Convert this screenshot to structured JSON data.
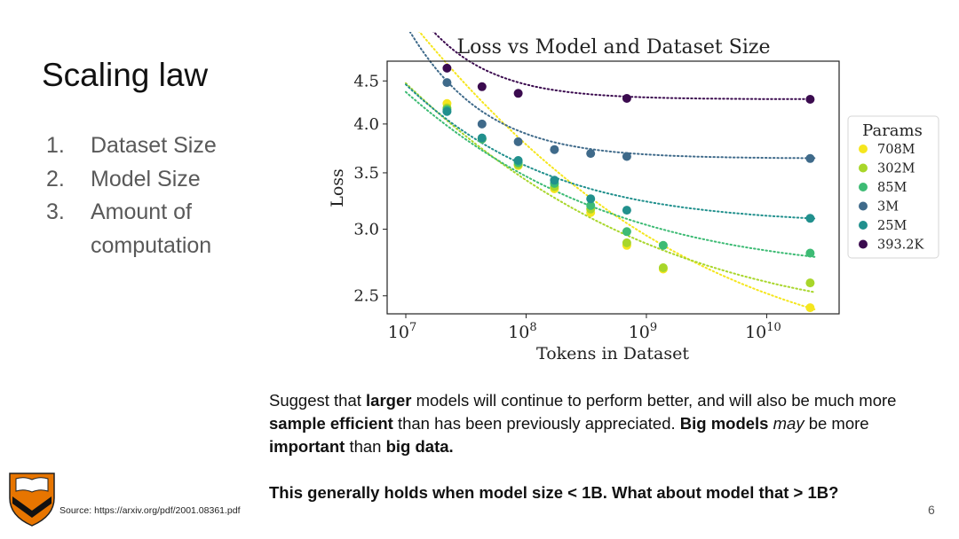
{
  "slide": {
    "title": "Scaling law",
    "points": [
      {
        "num": "1.",
        "text": "Dataset Size"
      },
      {
        "num": "2.",
        "text": "Model Size"
      },
      {
        "num": "3.",
        "text": "Amount of computation"
      }
    ],
    "body": {
      "p1": [
        {
          "t": "Suggest that ",
          "s": "normal"
        },
        {
          "t": "larger",
          "s": "bold"
        },
        {
          "t": " models will continue to perform better, and will also be much more ",
          "s": "normal"
        },
        {
          "t": "sample efficient",
          "s": "bold"
        },
        {
          "t": " than has been previously appreciated. ",
          "s": "normal"
        },
        {
          "t": "Big models",
          "s": "bold"
        },
        {
          "t": " ",
          "s": "normal"
        },
        {
          "t": "may",
          "s": "italic"
        },
        {
          "t": " be more ",
          "s": "normal"
        },
        {
          "t": "important",
          "s": "bold"
        },
        {
          "t": " than ",
          "s": "normal"
        },
        {
          "t": "big data.",
          "s": "bold"
        }
      ],
      "p2": "This generally holds when model size < 1B. What about model that > 1B?"
    },
    "source": "Source: https://arxiv.org/pdf/2001.08361.pdf",
    "page_number": "6",
    "logo_colors": {
      "shield": "#e77500",
      "book": "#ffffff",
      "chevron": "#111111"
    }
  },
  "chart_data": {
    "type": "scatter",
    "title": "Loss vs Model and Dataset Size",
    "xlabel": "Tokens in Dataset",
    "ylabel": "Loss",
    "xscale": "log",
    "yscale": "log",
    "xlim": [
      7000000,
      40000000000
    ],
    "ylim": [
      2.38,
      4.75
    ],
    "x_ticks": [
      {
        "value": 10000000,
        "base": "10",
        "exp": "7"
      },
      {
        "value": 100000000,
        "base": "10",
        "exp": "8"
      },
      {
        "value": 1000000000,
        "base": "10",
        "exp": "9"
      },
      {
        "value": 10000000000,
        "base": "10",
        "exp": "10"
      }
    ],
    "y_ticks": [
      {
        "value": 2.5,
        "label": "2.5"
      },
      {
        "value": 3.0,
        "label": "3.0"
      },
      {
        "value": 3.5,
        "label": "3.5"
      },
      {
        "value": 4.0,
        "label": "4.0"
      },
      {
        "value": 4.5,
        "label": "4.5"
      }
    ],
    "legend_title": "Params",
    "legend_position": "right",
    "series": [
      {
        "name": "708M",
        "color": "#f5e61e",
        "x": [
          22000000,
          43000000,
          86000000,
          172000000,
          344000000,
          688000000,
          1380000000,
          23000000000
        ],
        "y": [
          4.23,
          3.84,
          3.57,
          3.35,
          3.14,
          2.87,
          2.69,
          2.42
        ]
      },
      {
        "name": "302M",
        "color": "#a8d62a",
        "x": [
          22000000,
          43000000,
          86000000,
          172000000,
          344000000,
          688000000,
          1380000000,
          23000000000
        ],
        "y": [
          4.18,
          3.84,
          3.58,
          3.37,
          3.17,
          2.89,
          2.7,
          2.59
        ]
      },
      {
        "name": "85M",
        "color": "#3dbb74",
        "x": [
          22000000,
          43000000,
          86000000,
          172000000,
          344000000,
          688000000,
          1380000000,
          23000000000
        ],
        "y": [
          4.16,
          3.84,
          3.6,
          3.4,
          3.2,
          2.98,
          2.87,
          2.81
        ]
      },
      {
        "name": "3M",
        "color": "#3f6a8a",
        "x": [
          22000000,
          43000000,
          86000000,
          172000000,
          344000000,
          688000000,
          23000000000
        ],
        "y": [
          4.48,
          4.0,
          3.81,
          3.73,
          3.69,
          3.66,
          3.64
        ]
      },
      {
        "name": "25M",
        "color": "#21908d",
        "x": [
          22000000,
          43000000,
          86000000,
          172000000,
          344000000,
          688000000,
          23000000000
        ],
        "y": [
          4.14,
          3.85,
          3.62,
          3.43,
          3.26,
          3.16,
          3.09
        ]
      },
      {
        "name": "393.2K",
        "color": "#3b0b4f",
        "x": [
          22000000,
          43000000,
          86000000,
          688000000,
          23000000000
        ],
        "y": [
          4.66,
          4.43,
          4.35,
          4.29,
          4.28
        ]
      }
    ],
    "fits": [
      {
        "name": "708M",
        "color": "#f5e61e",
        "Linf": 2.05,
        "A": 330,
        "alpha": 0.285
      },
      {
        "name": "302M",
        "color": "#a8d62a",
        "Linf": 2.28,
        "A": 200,
        "alpha": 0.28
      },
      {
        "name": "85M",
        "color": "#3dbb74",
        "Linf": 2.64,
        "A": 300,
        "alpha": 0.32
      },
      {
        "name": "25M",
        "color": "#21908d",
        "Linf": 3.04,
        "A": 1450,
        "alpha": 0.43
      },
      {
        "name": "3M",
        "color": "#3f6a8a",
        "Linf": 3.64,
        "A": 640000,
        "alpha": 0.8
      },
      {
        "name": "393.2K",
        "color": "#3b0b4f",
        "Linf": 4.28,
        "A": 2800000,
        "alpha": 0.9
      }
    ]
  }
}
